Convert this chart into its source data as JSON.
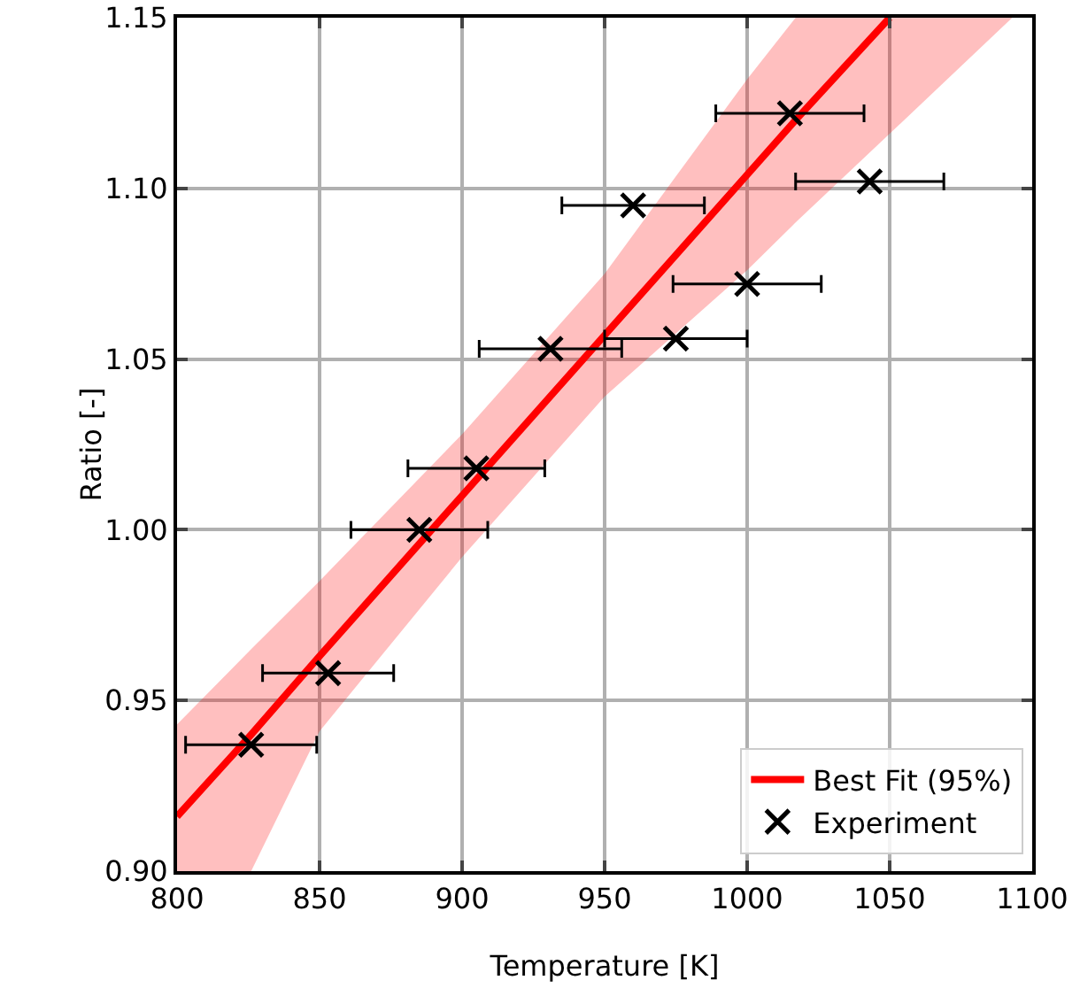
{
  "chart_data": {
    "type": "scatter",
    "xlabel": "Temperature [K]",
    "ylabel": "Ratio [-]",
    "xlim": [
      800,
      1100
    ],
    "ylim": [
      0.9,
      1.15
    ],
    "xticks": [
      800,
      850,
      900,
      950,
      1000,
      1050,
      1100
    ],
    "yticks": [
      {
        "value": 0.9,
        "label": "0.90"
      },
      0.95,
      {
        "value": 1.0,
        "label": "1.00"
      },
      1.05,
      {
        "value": 1.1,
        "label": "1.10"
      },
      1.15
    ],
    "grid": true,
    "legend": "bottom right",
    "series": [
      {
        "name": "Best Fit (95%)",
        "type": "line",
        "color": "#ff0000",
        "x": [
          800,
          826,
          850,
          900,
          950,
          1000,
          1017,
          1050,
          1093
        ],
        "values": [
          0.916,
          0.94,
          0.963,
          1.01,
          1.057,
          1.104,
          1.12,
          1.15,
          null
        ],
        "lower": [
          0.9,
          0.9,
          0.941,
          0.992,
          1.039,
          1.076,
          1.09,
          1.116,
          1.15
        ],
        "upper": [
          0.943,
          0.965,
          0.985,
          1.028,
          1.075,
          1.132,
          1.15,
          1.15,
          1.15
        ]
      },
      {
        "name": "Experiment",
        "color": "#000000",
        "marker": "cross",
        "x": [
          826,
          853,
          885,
          905,
          931,
          960,
          975,
          1000,
          1015,
          1043
        ],
        "values": [
          0.937,
          0.958,
          1.0,
          1.018,
          1.053,
          1.095,
          1.056,
          1.072,
          1.122,
          1.102
        ],
        "xerrors": [
          23,
          23,
          24,
          24,
          25,
          25,
          25,
          26,
          26,
          26
        ]
      }
    ]
  }
}
